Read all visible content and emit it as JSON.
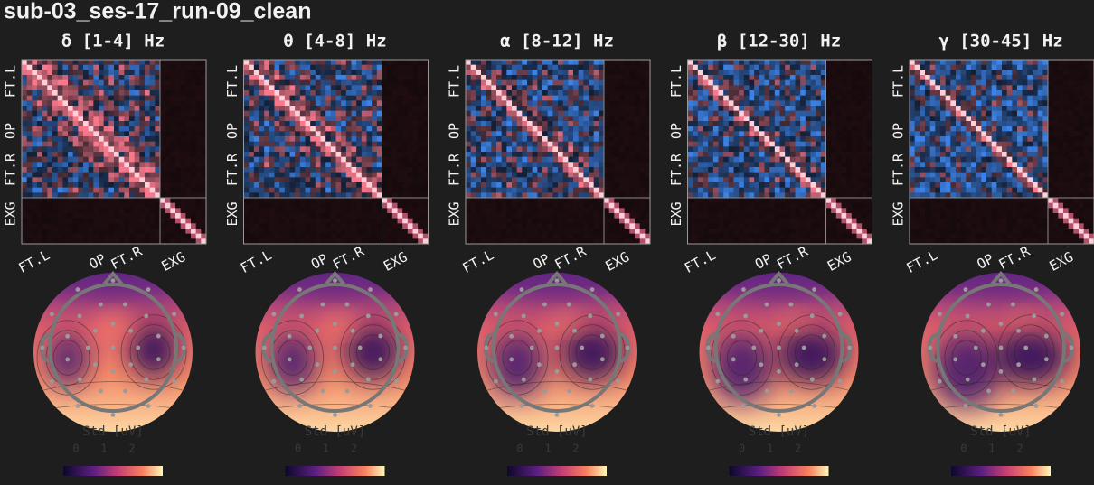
{
  "title": "sub-03_ses-17_run-09_clean",
  "panels": [
    {
      "title": "δ [1-4] Hz"
    },
    {
      "title": "θ [4-8] Hz"
    },
    {
      "title": "α [8-12] Hz"
    },
    {
      "title": "β [12-30] Hz"
    },
    {
      "title": "γ [30-45] Hz"
    }
  ],
  "matrix_labels": [
    "FT.L",
    "OP",
    "FT.R",
    "EXG"
  ],
  "colorbar": {
    "label": "Std [uV]",
    "ticks": [
      0,
      1,
      2
    ]
  }
}
